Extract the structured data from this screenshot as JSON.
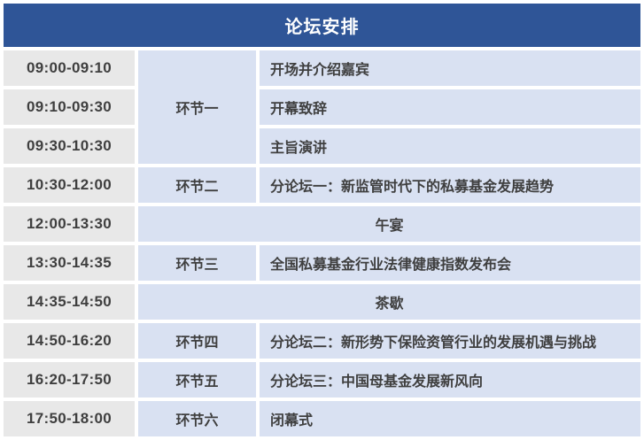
{
  "title": "论坛安排",
  "colors": {
    "header_bg": "#2F5597",
    "header_text": "#FFFFFF",
    "time_cell_bg": "#E8E8E8",
    "session_cell_bg": "#D9E1F2",
    "body_text": "#3F3F3F",
    "page_bg": "#FFFFFF"
  },
  "schedule": {
    "rows": [
      {
        "time": "09:00-09:10",
        "session": "环节一",
        "content": "开场并介绍嘉宾"
      },
      {
        "time": "09:10-09:30",
        "content": "开幕致辞"
      },
      {
        "time": "09:30-10:30",
        "content": "主旨演讲"
      },
      {
        "time": "10:30-12:00",
        "session": "环节二",
        "content": "分论坛一：新监管时代下的私募基金发展趋势"
      },
      {
        "time": "12:00-13:30",
        "content": "午宴"
      },
      {
        "time": "13:30-14:35",
        "session": "环节三",
        "content": "全国私募基金行业法律健康指数发布会"
      },
      {
        "time": "14:35-14:50",
        "content": "茶歇"
      },
      {
        "time": "14:50-16:20",
        "session": "环节四",
        "content": "分论坛二：新形势下保险资管行业的发展机遇与挑战"
      },
      {
        "time": "16:20-17:50",
        "session": "环节五",
        "content": "分论坛三：中国母基金发展新风向"
      },
      {
        "time": "17:50-18:00",
        "session": "环节六",
        "content": "闭幕式"
      }
    ]
  }
}
